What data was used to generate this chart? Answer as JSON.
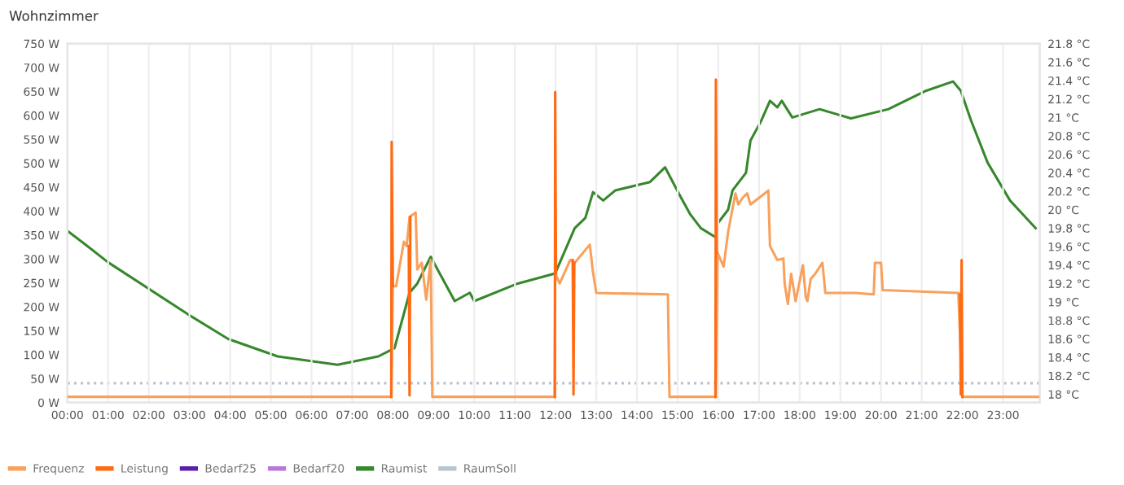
{
  "chart_data": {
    "type": "line",
    "title": "Wohnzimmer",
    "xlim": [
      0,
      23.9
    ],
    "xticks": [
      {
        "value": 0,
        "label": "00:00"
      },
      {
        "value": 1,
        "label": "01:00"
      },
      {
        "value": 2,
        "label": "02:00"
      },
      {
        "value": 3,
        "label": "03:00"
      },
      {
        "value": 4,
        "label": "04:00"
      },
      {
        "value": 5,
        "label": "05:00"
      },
      {
        "value": 6,
        "label": "06:00"
      },
      {
        "value": 7,
        "label": "07:00"
      },
      {
        "value": 8,
        "label": "08:00"
      },
      {
        "value": 9,
        "label": "09:00"
      },
      {
        "value": 10,
        "label": "10:00"
      },
      {
        "value": 11,
        "label": "11:00"
      },
      {
        "value": 12,
        "label": "12:00"
      },
      {
        "value": 13,
        "label": "13:00"
      },
      {
        "value": 14,
        "label": "14:00"
      },
      {
        "value": 15,
        "label": "15:00"
      },
      {
        "value": 16,
        "label": "16:00"
      },
      {
        "value": 17,
        "label": "17:00"
      },
      {
        "value": 18,
        "label": "18:00"
      },
      {
        "value": 19,
        "label": "19:00"
      },
      {
        "value": 20,
        "label": "20:00"
      },
      {
        "value": 21,
        "label": "21:00"
      },
      {
        "value": 22,
        "label": "22:00"
      },
      {
        "value": 23,
        "label": "23:00"
      }
    ],
    "ylim": [
      0,
      750
    ],
    "yticks": [
      {
        "value": 0,
        "label": "0 W"
      },
      {
        "value": 50,
        "label": "50 W"
      },
      {
        "value": 100,
        "label": "100 W"
      },
      {
        "value": 150,
        "label": "150 W"
      },
      {
        "value": 200,
        "label": "200 W"
      },
      {
        "value": 250,
        "label": "250 W"
      },
      {
        "value": 300,
        "label": "300 W"
      },
      {
        "value": 350,
        "label": "350 W"
      },
      {
        "value": 400,
        "label": "400 W"
      },
      {
        "value": 450,
        "label": "450 W"
      },
      {
        "value": 500,
        "label": "500 W"
      },
      {
        "value": 550,
        "label": "550 W"
      },
      {
        "value": 600,
        "label": "600 W"
      },
      {
        "value": 650,
        "label": "650 W"
      },
      {
        "value": 700,
        "label": "700 W"
      },
      {
        "value": 750,
        "label": "750 W"
      }
    ],
    "y2lim": [
      17.91,
      21.8
    ],
    "y2ticks": [
      {
        "value": 18,
        "label": "18 °C"
      },
      {
        "value": 18.2,
        "label": "18.2 °C"
      },
      {
        "value": 18.4,
        "label": "18.4 °C"
      },
      {
        "value": 18.6,
        "label": "18.6 °C"
      },
      {
        "value": 18.8,
        "label": "18.8 °C"
      },
      {
        "value": 19,
        "label": "19 °C"
      },
      {
        "value": 19.2,
        "label": "19.2 °C"
      },
      {
        "value": 19.4,
        "label": "19.4 °C"
      },
      {
        "value": 19.6,
        "label": "19.6 °C"
      },
      {
        "value": 19.8,
        "label": "19.8 °C"
      },
      {
        "value": 20,
        "label": "20 °C"
      },
      {
        "value": 20.2,
        "label": "20.2 °C"
      },
      {
        "value": 20.4,
        "label": "20.4 °C"
      },
      {
        "value": 20.6,
        "label": "20.6 °C"
      },
      {
        "value": 20.8,
        "label": "20.8 °C"
      },
      {
        "value": 21,
        "label": "21 °C"
      },
      {
        "value": 21.2,
        "label": "21.2 °C"
      },
      {
        "value": 21.4,
        "label": "21.4 °C"
      },
      {
        "value": 21.6,
        "label": "21.6 °C"
      },
      {
        "value": 21.8,
        "label": "21.8 °C"
      }
    ],
    "grid": "x",
    "legend": "bottom",
    "marker": "none",
    "series": [
      {
        "name": "Frequenz",
        "color": "#f9a15c",
        "x": [
          0,
          7.96,
          8.0,
          8.08,
          8.27,
          8.34,
          8.41,
          8.56,
          8.6,
          8.71,
          8.82,
          8.93,
          8.97,
          11.98,
          11.99,
          12.1,
          12.36,
          12.47,
          12.84,
          12.92,
          13.0,
          14.76,
          14.8,
          15.94,
          15.98,
          16.13,
          16.24,
          16.42,
          16.49,
          16.6,
          16.71,
          16.79,
          17.23,
          17.27,
          17.45,
          17.6,
          17.63,
          17.71,
          17.79,
          17.9,
          18.08,
          18.15,
          18.19,
          18.27,
          18.38,
          18.56,
          18.63,
          19.37,
          19.82,
          19.85,
          20.0,
          20.04,
          21.9,
          22.0,
          23.87
        ],
        "values": [
          12,
          12,
          243,
          243,
          336,
          327,
          388,
          397,
          278,
          292,
          215,
          298,
          12,
          12,
          270,
          249,
          298,
          292,
          330,
          272,
          229,
          226,
          12,
          12,
          313,
          284,
          356,
          437,
          414,
          428,
          437,
          414,
          443,
          327,
          298,
          301,
          249,
          206,
          269,
          212,
          287,
          220,
          212,
          258,
          269,
          292,
          229,
          229,
          226,
          292,
          292,
          235,
          229,
          12,
          12
        ]
      },
      {
        "name": "Leistung",
        "color": "#ff6a13",
        "x": [
          7.96,
          7.97,
          8.0,
          8.01,
          8.39,
          8.41,
          8.43,
          8.44,
          11.98,
          11.99,
          12.01,
          12.02,
          12.42,
          12.44,
          12.46,
          12.47,
          15.93,
          15.94,
          15.96,
          15.97,
          21.94,
          21.96,
          21.98,
          22.0
        ],
        "values": [
          12,
          545,
          243,
          null,
          327,
          15,
          388,
          null,
          12,
          649,
          270,
          null,
          298,
          17,
          292,
          null,
          12,
          675,
          313,
          null,
          226,
          17,
          298,
          12
        ]
      },
      {
        "name": "Bedarf25",
        "color": "#5a1fa8"
      },
      {
        "name": "Bedarf20",
        "color": "#b877d9"
      },
      {
        "name": "Raumist",
        "color": "#37872d",
        "axis": "y2",
        "x": [
          0,
          0.48,
          1.0,
          2.95,
          3.95,
          5.17,
          6.64,
          7.64,
          8.04,
          8.41,
          8.6,
          8.93,
          9.04,
          9.52,
          9.89,
          10.0,
          11.07,
          11.99,
          12.47,
          12.73,
          12.92,
          13.17,
          13.47,
          14.32,
          14.69,
          15.06,
          15.31,
          15.57,
          15.94,
          15.98,
          16.24,
          16.35,
          16.68,
          16.79,
          17.05,
          17.27,
          17.45,
          17.56,
          17.82,
          18.49,
          19.26,
          20.18,
          21.11,
          21.77,
          21.96,
          22.21,
          22.62,
          23.17,
          23.8
        ],
        "values": [
          19.77,
          19.61,
          19.43,
          18.87,
          18.6,
          18.41,
          18.32,
          18.41,
          18.5,
          19.1,
          19.2,
          19.49,
          19.4,
          19.01,
          19.1,
          19.01,
          19.2,
          19.31,
          19.8,
          19.91,
          20.19,
          20.1,
          20.21,
          20.3,
          20.46,
          20.15,
          19.95,
          19.8,
          19.7,
          19.85,
          20.0,
          20.21,
          20.4,
          20.75,
          20.96,
          21.18,
          21.11,
          21.18,
          21.0,
          21.09,
          20.99,
          21.09,
          21.29,
          21.39,
          21.29,
          20.97,
          20.51,
          20.1,
          19.8
        ]
      },
      {
        "name": "RaumSoll",
        "color": "#b8c4d0",
        "axis": "y2",
        "line_style": "dotted",
        "x": [
          0,
          23.9
        ],
        "values": [
          18.12,
          18.12
        ]
      }
    ]
  }
}
